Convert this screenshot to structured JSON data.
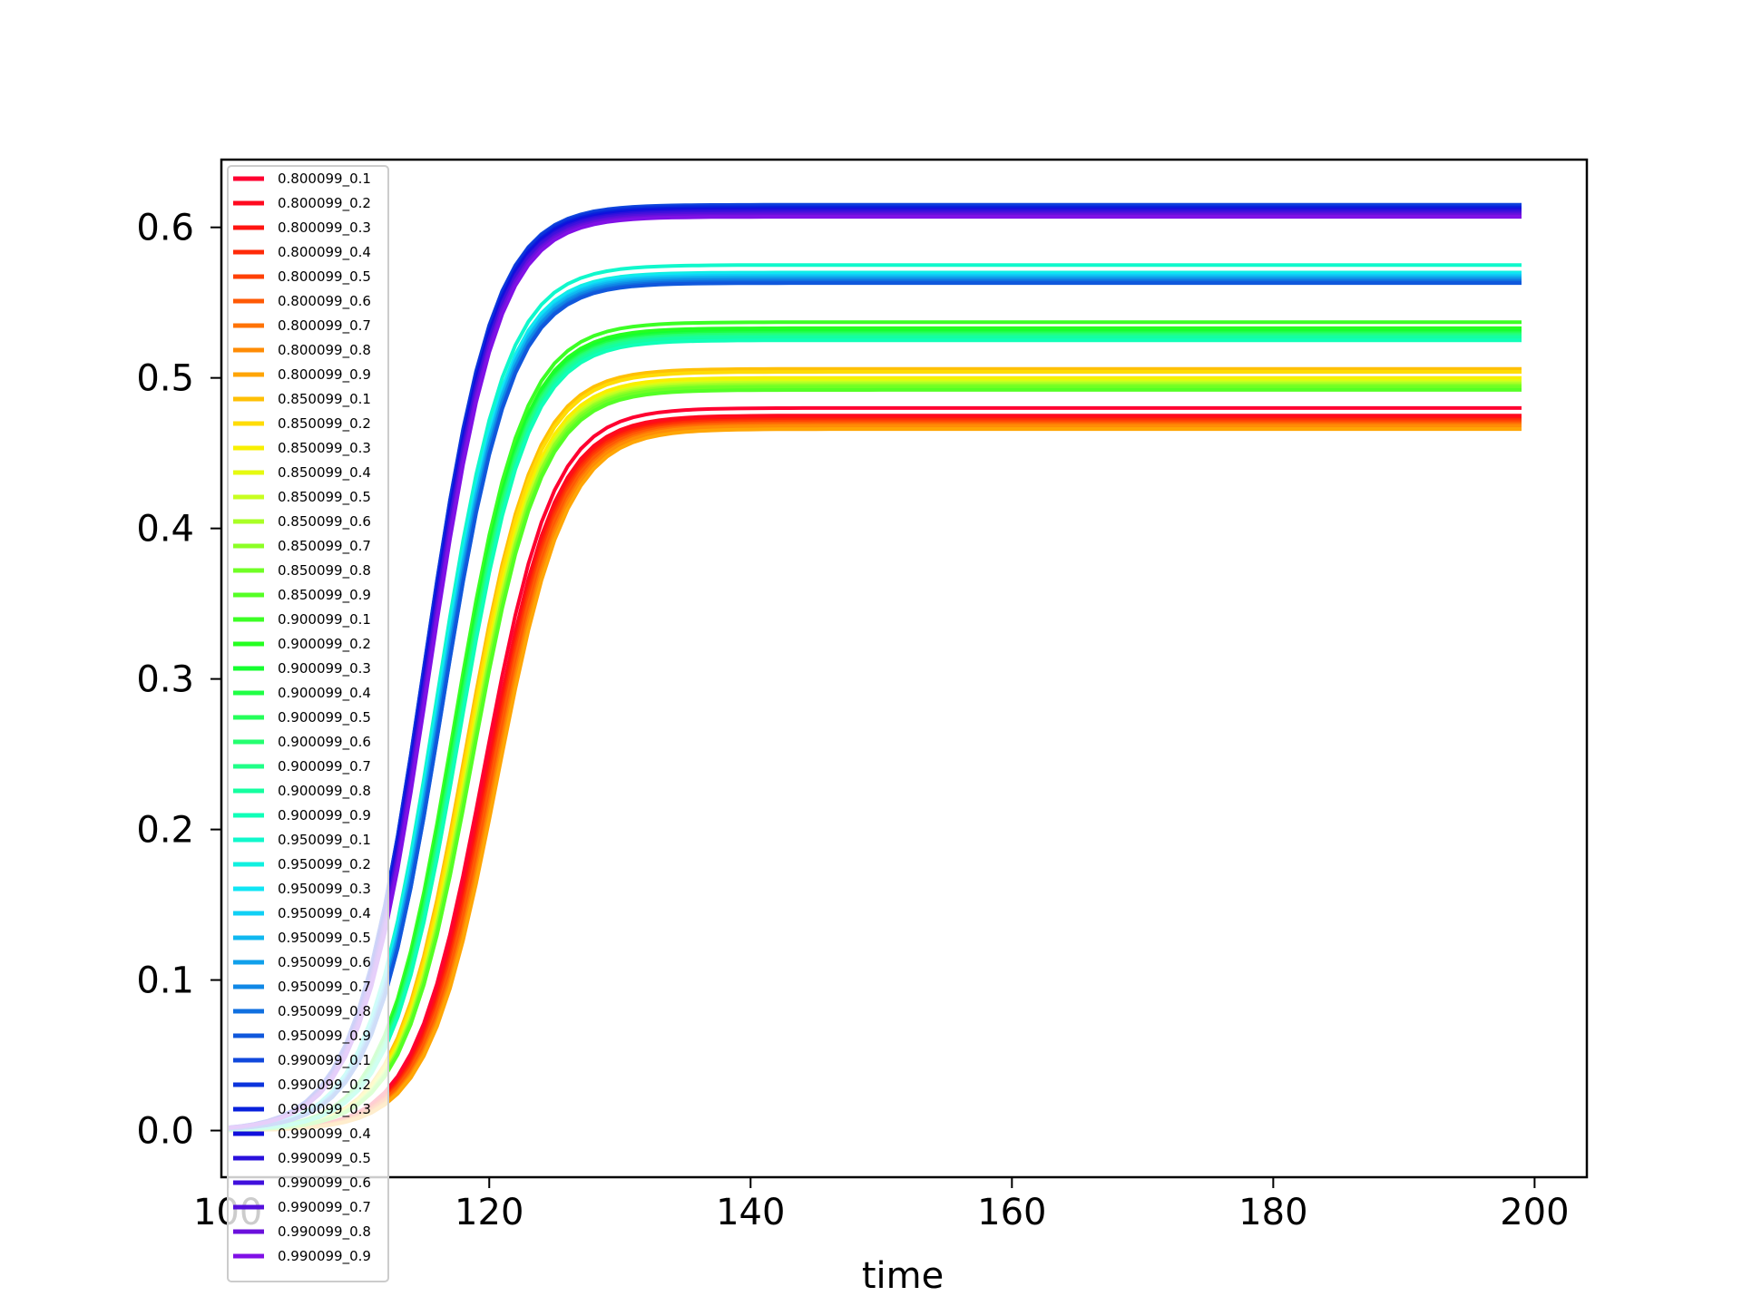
{
  "chart_data": {
    "type": "line",
    "title": "",
    "xlabel": "time",
    "ylabel": "",
    "xlim": [
      99.5,
      204
    ],
    "ylim": [
      -0.031,
      0.645
    ],
    "xticks": [
      100,
      120,
      140,
      160,
      180,
      200
    ],
    "xtick_labels": [
      "100",
      "120",
      "140",
      "160",
      "180",
      "200"
    ],
    "yticks": [
      0.0,
      0.1,
      0.2,
      0.3,
      0.4,
      0.5,
      0.6
    ],
    "ytick_labels": [
      "0.0",
      "0.1",
      "0.2",
      "0.3",
      "0.4",
      "0.5",
      "0.6"
    ],
    "x_range": [
      100,
      199
    ],
    "grid": false,
    "legend_position": "left",
    "colormap": "rainbow",
    "series": [
      {
        "name": "0.800099_0.1",
        "color": "#ff0030",
        "plateau": 0.48,
        "midpoint": 119.6
      },
      {
        "name": "0.800099_0.2",
        "color": "#ff0a1f",
        "plateau": 0.475,
        "midpoint": 119.8
      },
      {
        "name": "0.800099_0.3",
        "color": "#ff1410",
        "plateau": 0.473,
        "midpoint": 119.9
      },
      {
        "name": "0.800099_0.4",
        "color": "#ff2a08",
        "plateau": 0.472,
        "midpoint": 120.0
      },
      {
        "name": "0.800099_0.5",
        "color": "#ff4005",
        "plateau": 0.471,
        "midpoint": 120.1
      },
      {
        "name": "0.800099_0.6",
        "color": "#ff5a05",
        "plateau": 0.47,
        "midpoint": 120.2
      },
      {
        "name": "0.800099_0.7",
        "color": "#ff7305",
        "plateau": 0.469,
        "midpoint": 120.4
      },
      {
        "name": "0.800099_0.8",
        "color": "#ff8c05",
        "plateau": 0.468,
        "midpoint": 120.5
      },
      {
        "name": "0.800099_0.9",
        "color": "#ffa505",
        "plateau": 0.466,
        "midpoint": 120.6
      },
      {
        "name": "0.850099_0.1",
        "color": "#ffc005",
        "plateau": 0.506,
        "midpoint": 118.2
      },
      {
        "name": "0.850099_0.2",
        "color": "#ffdc05",
        "plateau": 0.504,
        "midpoint": 118.3
      },
      {
        "name": "0.850099_0.3",
        "color": "#f8f000",
        "plateau": 0.5,
        "midpoint": 118.4
      },
      {
        "name": "0.850099_0.4",
        "color": "#e6fa10",
        "plateau": 0.498,
        "midpoint": 118.5
      },
      {
        "name": "0.850099_0.5",
        "color": "#c8ff20",
        "plateau": 0.497,
        "midpoint": 118.5
      },
      {
        "name": "0.850099_0.6",
        "color": "#aaff25",
        "plateau": 0.496,
        "midpoint": 118.6
      },
      {
        "name": "0.850099_0.7",
        "color": "#8cff25",
        "plateau": 0.495,
        "midpoint": 118.6
      },
      {
        "name": "0.850099_0.8",
        "color": "#70ff25",
        "plateau": 0.494,
        "midpoint": 118.7
      },
      {
        "name": "0.850099_0.9",
        "color": "#55ff25",
        "plateau": 0.492,
        "midpoint": 118.7
      },
      {
        "name": "0.900099_0.1",
        "color": "#3cff25",
        "plateau": 0.537,
        "midpoint": 117.3
      },
      {
        "name": "0.900099_0.2",
        "color": "#25ff20",
        "plateau": 0.533,
        "midpoint": 117.4
      },
      {
        "name": "0.900099_0.3",
        "color": "#15ff30",
        "plateau": 0.531,
        "midpoint": 117.4
      },
      {
        "name": "0.900099_0.4",
        "color": "#20ff45",
        "plateau": 0.53,
        "midpoint": 117.5
      },
      {
        "name": "0.900099_0.5",
        "color": "#25ff5a",
        "plateau": 0.529,
        "midpoint": 117.5
      },
      {
        "name": "0.900099_0.6",
        "color": "#25ff70",
        "plateau": 0.529,
        "midpoint": 117.6
      },
      {
        "name": "0.900099_0.7",
        "color": "#20ff88",
        "plateau": 0.528,
        "midpoint": 117.6
      },
      {
        "name": "0.900099_0.8",
        "color": "#15ffa0",
        "plateau": 0.527,
        "midpoint": 117.7
      },
      {
        "name": "0.900099_0.9",
        "color": "#10ffb8",
        "plateau": 0.525,
        "midpoint": 117.7
      },
      {
        "name": "0.950099_0.1",
        "color": "#10f8cc",
        "plateau": 0.575,
        "midpoint": 116.0
      },
      {
        "name": "0.950099_0.2",
        "color": "#10f0e0",
        "plateau": 0.57,
        "midpoint": 116.1
      },
      {
        "name": "0.950099_0.3",
        "color": "#10e6f5",
        "plateau": 0.569,
        "midpoint": 116.1
      },
      {
        "name": "0.950099_0.4",
        "color": "#10d0f5",
        "plateau": 0.568,
        "midpoint": 116.2
      },
      {
        "name": "0.950099_0.5",
        "color": "#10b8f0",
        "plateau": 0.567,
        "midpoint": 116.2
      },
      {
        "name": "0.950099_0.6",
        "color": "#10a0eb",
        "plateau": 0.566,
        "midpoint": 116.3
      },
      {
        "name": "0.950099_0.7",
        "color": "#1088e6",
        "plateau": 0.565,
        "midpoint": 116.3
      },
      {
        "name": "0.950099_0.8",
        "color": "#1070e0",
        "plateau": 0.564,
        "midpoint": 116.4
      },
      {
        "name": "0.950099_0.9",
        "color": "#1058dc",
        "plateau": 0.563,
        "midpoint": 116.4
      },
      {
        "name": "0.990099_0.1",
        "color": "#1048dc",
        "plateau": 0.615,
        "midpoint": 115.0
      },
      {
        "name": "0.990099_0.2",
        "color": "#0c34dc",
        "plateau": 0.614,
        "midpoint": 115.0
      },
      {
        "name": "0.990099_0.3",
        "color": "#0820dc",
        "plateau": 0.613,
        "midpoint": 115.1
      },
      {
        "name": "0.990099_0.4",
        "color": "#1010dc",
        "plateau": 0.612,
        "midpoint": 115.1
      },
      {
        "name": "0.990099_0.5",
        "color": "#2a10dc",
        "plateau": 0.611,
        "midpoint": 115.2
      },
      {
        "name": "0.990099_0.6",
        "color": "#4010dc",
        "plateau": 0.61,
        "midpoint": 115.2
      },
      {
        "name": "0.990099_0.7",
        "color": "#5510dc",
        "plateau": 0.609,
        "midpoint": 115.3
      },
      {
        "name": "0.990099_0.8",
        "color": "#6a10dc",
        "plateau": 0.608,
        "midpoint": 115.3
      },
      {
        "name": "0.990099_0.9",
        "color": "#8010e6",
        "plateau": 0.607,
        "midpoint": 115.4
      }
    ]
  }
}
